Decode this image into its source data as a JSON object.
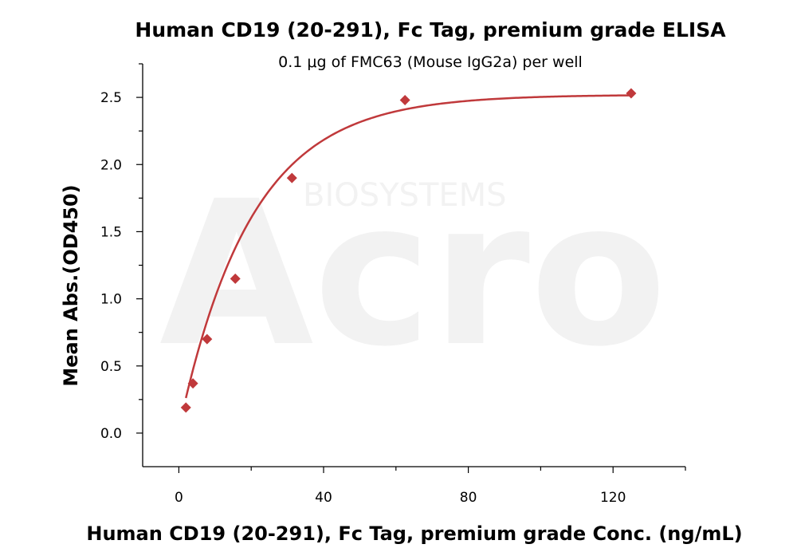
{
  "chart_data": {
    "type": "scatter",
    "title": "Human CD19 (20-291), Fc Tag, premium grade ELISA",
    "subtitle": "0.1 μg of FMC63 (Mouse IgG2a) per well",
    "xlabel": "Human CD19 (20-291), Fc Tag, premium grade Conc. (ng/mL)",
    "ylabel": "Mean Abs.(OD450)",
    "xlim": [
      -10,
      140
    ],
    "ylim": [
      -0.25,
      2.75
    ],
    "x_ticks": [
      "0",
      "40",
      "80",
      "120"
    ],
    "y_ticks": [
      "0.0",
      "0.5",
      "1.0",
      "1.5",
      "2.0",
      "2.5"
    ],
    "x_tick_values": [
      0,
      40,
      80,
      120
    ],
    "y_tick_values": [
      0.0,
      0.5,
      1.0,
      1.5,
      2.0,
      2.5
    ],
    "x_minor_step": 20,
    "y_minor_step": 0.25,
    "grid": false,
    "marker": "diamond",
    "color": "#c0393b",
    "series": [
      {
        "x": [
          1.95,
          3.9,
          7.8,
          15.6,
          31.25,
          62.5,
          125
        ],
        "values": [
          0.19,
          0.37,
          0.7,
          1.15,
          1.9,
          2.48,
          2.53
        ]
      }
    ],
    "fit_curve": {
      "model": "exponential-rise",
      "bottom": 0.03,
      "top": 2.52,
      "k": 0.05
    },
    "watermark": {
      "brand": "Acro",
      "tagline": "BIOSYSTEMS"
    }
  }
}
